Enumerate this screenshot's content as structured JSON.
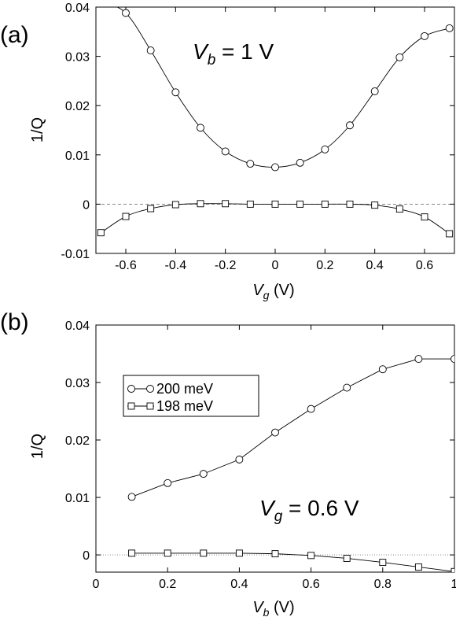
{
  "chart_data": [
    {
      "type": "line",
      "panel_label": "(a)",
      "xlabel": "V_g (V)",
      "xlabel_main": "V",
      "xlabel_sub": "g",
      "xlabel_unit": " (V)",
      "ylabel": "1/Q",
      "xlim": [
        -0.72,
        0.72
      ],
      "ylim": [
        -0.01,
        0.04
      ],
      "xticks": [
        -0.6,
        -0.4,
        -0.2,
        0,
        0.2,
        0.4,
        0.6
      ],
      "xtick_labels": [
        "-0.6",
        "-0.4",
        "-0.2",
        "0",
        "0.2",
        "0.4",
        "0.6"
      ],
      "yticks": [
        -0.01,
        0,
        0.01,
        0.02,
        0.03,
        0.04
      ],
      "ytick_labels": [
        "-0.01",
        "0",
        "0.01",
        "0.02",
        "0.03",
        "0.04"
      ],
      "grid": false,
      "zero_line": "dashed",
      "annotation": {
        "main": "V",
        "sub": "b",
        "rest": " = 1 V"
      },
      "series": [
        {
          "marker": "circle",
          "x": [
            -0.7,
            -0.6,
            -0.5,
            -0.4,
            -0.3,
            -0.2,
            -0.1,
            0,
            0.1,
            0.2,
            0.3,
            0.4,
            0.5,
            0.6,
            0.7
          ],
          "y": [
            0.0412,
            0.0388,
            0.0312,
            0.0227,
            0.0155,
            0.0107,
            0.0082,
            0.0075,
            0.0084,
            0.0111,
            0.016,
            0.0229,
            0.0298,
            0.0341,
            0.0357
          ]
        },
        {
          "marker": "square",
          "x": [
            -0.7,
            -0.6,
            -0.5,
            -0.4,
            -0.3,
            -0.2,
            -0.1,
            0,
            0.1,
            0.2,
            0.3,
            0.4,
            0.5,
            0.6,
            0.7
          ],
          "y": [
            -0.0058,
            -0.0025,
            -0.0009,
            -0.0001,
            0.0001,
            0.0001,
            0.0,
            0.0,
            0.0,
            0.0,
            0.0,
            -0.0002,
            -0.001,
            -0.0026,
            -0.006
          ]
        }
      ]
    },
    {
      "type": "line",
      "panel_label": "(b)",
      "xlabel": "V_b (V)",
      "xlabel_main": "V",
      "xlabel_sub": "b",
      "xlabel_unit": " (V)",
      "ylabel": "1/Q",
      "xlim": [
        0,
        1
      ],
      "ylim": [
        -0.003,
        0.04
      ],
      "xticks": [
        0,
        0.2,
        0.4,
        0.6,
        0.8,
        1
      ],
      "xtick_labels": [
        "0",
        "0.2",
        "0.4",
        "0.6",
        "0.8",
        "1"
      ],
      "yticks": [
        0,
        0.01,
        0.02,
        0.03,
        0.04
      ],
      "ytick_labels": [
        "0",
        "0.01",
        "0.02",
        "0.03",
        "0.04"
      ],
      "grid": false,
      "zero_line": "dotted",
      "legend_position": "top-left",
      "annotation": {
        "main": "V",
        "sub": "g",
        "rest": " = 0.6 V"
      },
      "series": [
        {
          "name": "200 meV",
          "marker": "circle",
          "x": [
            0.1,
            0.2,
            0.3,
            0.4,
            0.5,
            0.6,
            0.7,
            0.8,
            0.9,
            1.0
          ],
          "y": [
            0.0101,
            0.0125,
            0.0141,
            0.0166,
            0.0213,
            0.0254,
            0.0291,
            0.0323,
            0.0341,
            0.0341
          ]
        },
        {
          "name": "198 meV",
          "marker": "square",
          "x": [
            0.1,
            0.2,
            0.3,
            0.4,
            0.5,
            0.6,
            0.7,
            0.8,
            0.9,
            1.0
          ],
          "y": [
            0.0003,
            0.0003,
            0.0003,
            0.0003,
            0.0002,
            -0.0001,
            -0.0006,
            -0.0013,
            -0.0021,
            -0.0029
          ]
        }
      ]
    }
  ]
}
